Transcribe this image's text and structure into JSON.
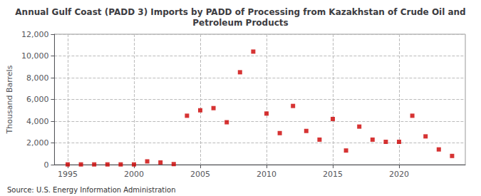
{
  "chart_data": {
    "type": "scatter",
    "title": "Annual Gulf Coast (PADD 3) Imports by PADD of Processing from Kazakhstan of Crude Oil and\nPetroleum Products",
    "ylabel": "Thousand Barrels",
    "annotations": [
      "Source: U.S. Energy Information Administration"
    ],
    "x": [
      1995,
      1996,
      1997,
      1998,
      1999,
      2000,
      2001,
      2002,
      2003,
      2004,
      2005,
      2006,
      2007,
      2008,
      2009,
      2010,
      2011,
      2012,
      2013,
      2014,
      2015,
      2016,
      2017,
      2018,
      2019,
      2020,
      2021,
      2022,
      2023,
      2024
    ],
    "values": [
      20,
      20,
      20,
      20,
      20,
      20,
      300,
      200,
      50,
      4500,
      5000,
      5200,
      3900,
      8500,
      10400,
      4700,
      2900,
      5400,
      3100,
      2300,
      4200,
      1300,
      3500,
      2300,
      2100,
      2100,
      4500,
      2600,
      1400,
      800
    ],
    "color": "#cc0000",
    "marker": "square",
    "xlim": [
      1994,
      2025
    ],
    "xticks": [
      1995,
      2000,
      2005,
      2010,
      2015,
      2020
    ],
    "ylim": [
      0,
      12000
    ],
    "yticks": [
      0,
      {
        "value": 2000,
        "label": "2,000"
      },
      {
        "value": 4000,
        "label": "4,000"
      },
      {
        "value": 6000,
        "label": "6,000"
      },
      {
        "value": 8000,
        "label": "8,000"
      },
      {
        "value": 10000,
        "label": "10,000"
      },
      {
        "value": 12000,
        "label": "12,000"
      }
    ],
    "grid": true
  }
}
